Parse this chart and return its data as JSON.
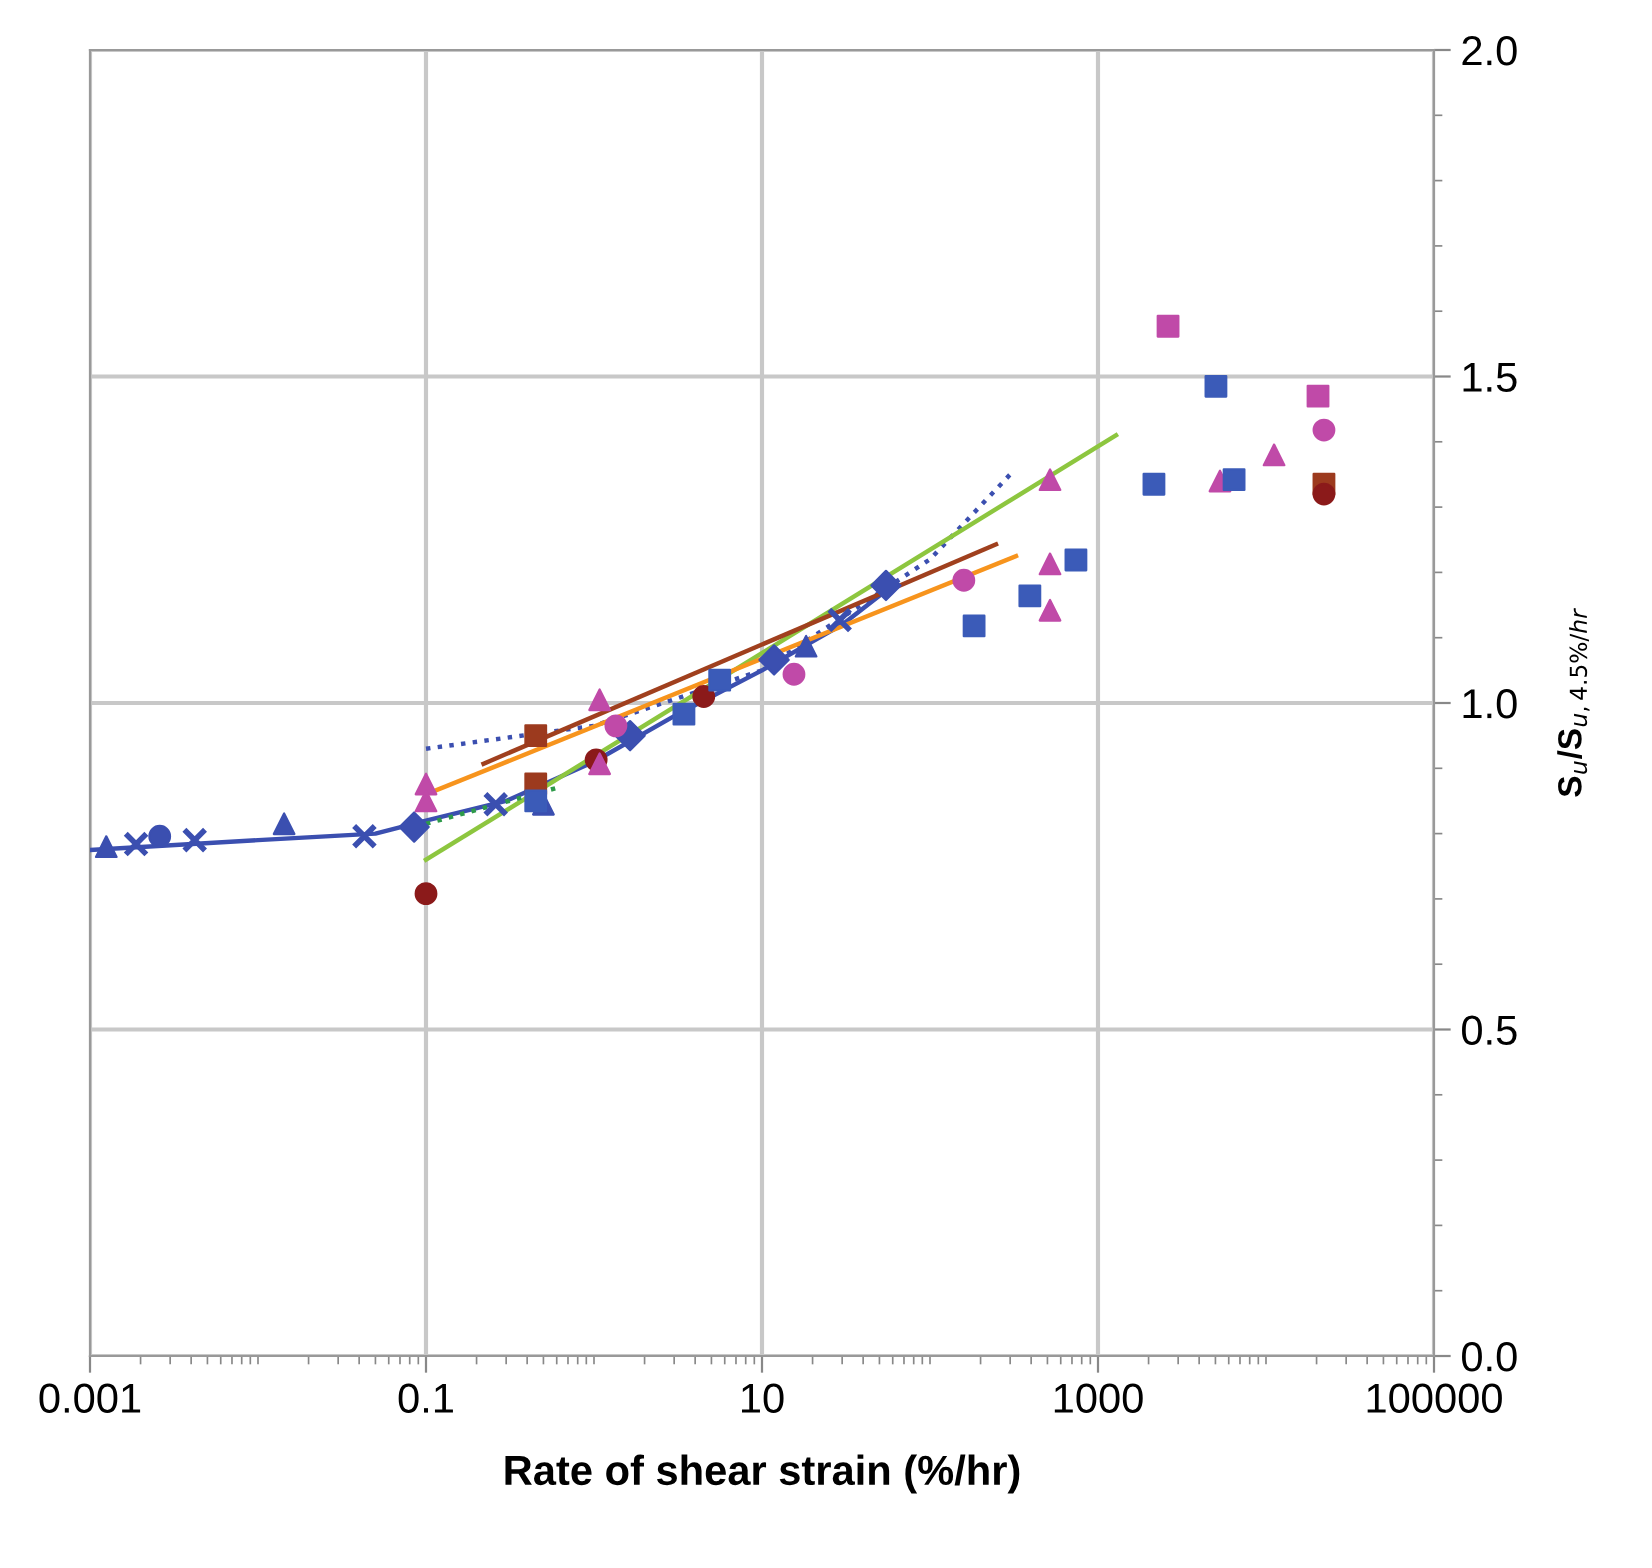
{
  "chart_data": {
    "type": "scatter",
    "xlabel": "Rate of shear strain (%/hr)",
    "ylabel": "S$_{u}$/S$_{u,4.5%/hr}$",
    "log": "x",
    "xlim": [
      0.001,
      100000
    ],
    "xticks": [
      0.001,
      0.1,
      10,
      1000,
      100000
    ],
    "ylim": [
      0,
      2
    ],
    "yticks": [
      {
        "value": 0.0,
        "label": "0.0"
      },
      {
        "value": 0.1,
        "label": null
      },
      {
        "value": 0.2,
        "label": null
      },
      {
        "value": 0.3,
        "label": null
      },
      {
        "value": 0.4,
        "label": null
      },
      {
        "value": 0.5,
        "label": "0.5"
      },
      {
        "value": 0.6,
        "label": null
      },
      {
        "value": 0.7,
        "label": null
      },
      {
        "value": 0.8,
        "label": null
      },
      {
        "value": 0.9,
        "label": null
      },
      {
        "value": 1.0,
        "label": "1.0"
      },
      {
        "value": 1.1,
        "label": null
      },
      {
        "value": 1.2,
        "label": null
      },
      {
        "value": 1.3,
        "label": null
      },
      {
        "value": 1.4,
        "label": null
      },
      {
        "value": 1.5,
        "label": "1.5"
      },
      {
        "value": 1.6,
        "label": null
      },
      {
        "value": 1.7,
        "label": null
      },
      {
        "value": 1.8,
        "label": null
      },
      {
        "value": 1.9,
        "label": null
      },
      {
        "value": 2.0,
        "label": "2.0"
      }
    ],
    "grid": true,
    "legend": false,
    "series": [
      {
        "type": "line",
        "color": "#3b4fb0",
        "line_style": "solid",
        "marker": "none",
        "x": [
          0.001,
          0.01,
          0.05,
          0.1,
          0.3,
          1,
          3,
          10,
          30,
          60
        ],
        "values": [
          0.775,
          0.79,
          0.8,
          0.82,
          0.85,
          0.91,
          0.98,
          1.05,
          1.12,
          1.18
        ]
      },
      {
        "type": "line",
        "color": "#3b4fb0",
        "line_style": "dotted",
        "marker": "none",
        "x": [
          0.1,
          1,
          10,
          100,
          300
        ],
        "values": [
          0.93,
          0.965,
          1.05,
          1.22,
          1.35
        ]
      },
      {
        "type": "line",
        "color": "#8dc63f",
        "line_style": "solid",
        "marker": "none",
        "x": [
          0.1,
          1280
        ],
        "values": [
          0.76,
          1.41
        ]
      },
      {
        "type": "line",
        "color": "#2e9a4a",
        "line_style": "dotted",
        "marker": "none",
        "x": [
          0.1,
          0.6
        ],
        "values": [
          0.815,
          0.87
        ]
      },
      {
        "type": "line",
        "color": "#f7941d",
        "line_style": "solid",
        "marker": "none",
        "x": [
          0.1,
          325
        ],
        "values": [
          0.86,
          1.225
        ]
      },
      {
        "type": "line",
        "color": "#a0401e",
        "line_style": "solid",
        "marker": "none",
        "x": [
          0.22,
          247
        ],
        "values": [
          0.907,
          1.243
        ]
      },
      {
        "color": "#3b4fb0",
        "marker": "triangle",
        "x": [
          0.00125,
          0.0143,
          0.5,
          18.3
        ],
        "values": [
          0.78,
          0.815,
          0.845,
          1.087
        ]
      },
      {
        "color": "#3b4fb0",
        "marker": "cross",
        "x": [
          0.00188,
          0.0042,
          0.043,
          0.26,
          29
        ],
        "values": [
          0.784,
          0.79,
          0.796,
          0.845,
          1.127
        ]
      },
      {
        "color": "#3b4fb0",
        "marker": "circle",
        "x": [
          0.0026
        ],
        "values": [
          0.796
        ]
      },
      {
        "color": "#3b4fb0",
        "marker": "diamond",
        "x": [
          0.085,
          1.64,
          11.8,
          54.7
        ],
        "values": [
          0.81,
          0.95,
          1.066,
          1.18
        ]
      },
      {
        "color": "#9c3a1e",
        "marker": "square",
        "x": [
          0.45,
          0.45,
          22130
        ],
        "values": [
          0.95,
          0.876,
          1.335
        ]
      },
      {
        "color": "#8b1a1a",
        "marker": "circle",
        "x": [
          0.1,
          1.03,
          4.5,
          22130
        ],
        "values": [
          0.708,
          0.913,
          1.01,
          1.32
        ]
      },
      {
        "color": "#c04aa8",
        "marker": "triangle",
        "x": [
          0.1,
          0.1,
          1.08,
          1.08,
          518,
          518,
          518,
          5320,
          11170
        ],
        "values": [
          0.876,
          0.85,
          1.005,
          0.907,
          1.213,
          1.142,
          1.342,
          1.34,
          1.38
        ]
      },
      {
        "color": "#c04aa8",
        "marker": "square",
        "x": [
          2612,
          20400
        ],
        "values": [
          1.577,
          1.47
        ]
      },
      {
        "color": "#c04aa8",
        "marker": "circle",
        "x": [
          1.35,
          15.5,
          159,
          22130
        ],
        "values": [
          0.965,
          1.044,
          1.188,
          1.418
        ]
      },
      {
        "color": "#3b5bb8",
        "marker": "square",
        "x": [
          0.45,
          3.43,
          5.6,
          183,
          393,
          739,
          2153,
          5035,
          6457
        ],
        "values": [
          0.85,
          0.983,
          1.035,
          1.118,
          1.164,
          1.219,
          1.335,
          1.485,
          1.342
        ]
      }
    ]
  }
}
